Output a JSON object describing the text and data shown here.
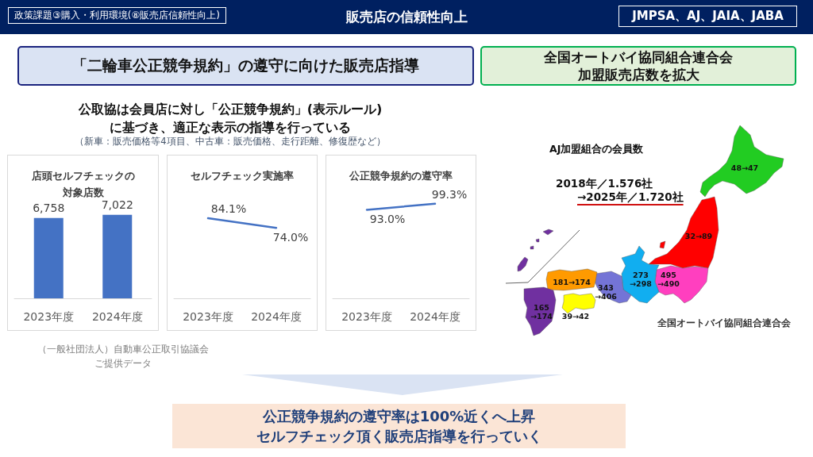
{
  "chart_data": [
    {
      "type": "other",
      "title": "販売店の信頼性向上",
      "annotations": [
        "政策課題③購入・利用環境(⑧販売店信頼性向上)",
        "JMPSA、AJ、JAIA、JABA",
        "「二輪車公正競争規約」の遵守に向けた販売店指導",
        "公取協は会員店に対し「公正競争規約」(表示ルール)\nに基づき、適正な表示の指導を行っている",
        "（新車：販売価格等4項目、中古車：販売価格、走行距離、修復歴など）",
        "（一般社団法人）自動車公正取引協議会ご提供データ",
        "公正競争規約の遵守率は100%近くへ上昇",
        "セルフチェック頂く販売店指導を行っていく"
      ]
    },
    {
      "type": "bar",
      "title": "店頭セルフチェックの対象店数",
      "categories": [
        "2023年度",
        "2024年度"
      ],
      "values": [
        6758,
        7022
      ],
      "color": "#4472c4",
      "value_labels": [
        "6,758",
        "7,022"
      ]
    },
    {
      "type": "line",
      "title": "セルフチェック実施率",
      "categories": [
        "2023年度",
        "2024年度"
      ],
      "values": [
        84.1,
        74.0
      ],
      "color": "#4472c4",
      "value_labels": [
        "84.1%",
        "74.0%"
      ],
      "marker": "none",
      "line_style": "solid"
    },
    {
      "type": "line",
      "title": "公正競争規約の遵守率",
      "categories": [
        "2023年度",
        "2024年度"
      ],
      "values": [
        93.0,
        99.3
      ],
      "color": "#4472c4",
      "value_labels": [
        "93.0%",
        "99.3%"
      ],
      "marker": "none",
      "line_style": "solid"
    },
    {
      "type": "other",
      "title": "全国オートバイ協同組合連合会加盟販売店数を拡大",
      "subtitle": "AJ加盟組合の会員数",
      "annotations": [
        "2018年／1.576社",
        "→2025年／1.720社",
        "48→47",
        "32→89",
        "273\n→298",
        "495\n→490",
        "343\n→406",
        "181→174",
        "39→42",
        "165\n→174",
        "全国オートバイ協同組合連合会"
      ]
    }
  ]
}
